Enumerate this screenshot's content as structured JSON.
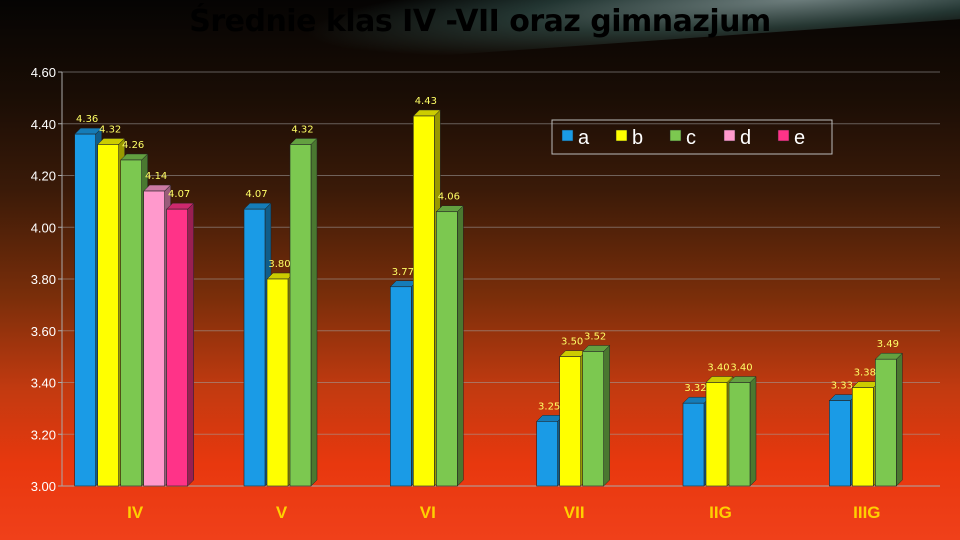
{
  "chart_data": {
    "type": "bar",
    "title": "Średnie klas IV -VII oraz gimnazjum",
    "categories": [
      "IV",
      "V",
      "VI",
      "VII",
      "IIG",
      "IIIG"
    ],
    "ylim": [
      3.0,
      4.6
    ],
    "yticks": [
      "3.00",
      "3.20",
      "3.40",
      "3.60",
      "3.80",
      "4.00",
      "4.20",
      "4.40",
      "4.60"
    ],
    "legend_position": "top-right",
    "grid": true,
    "series": [
      {
        "name": "a",
        "color": "#1a9be6",
        "values": [
          4.36,
          4.07,
          3.77,
          3.25,
          3.32,
          3.33
        ],
        "labels": [
          "4.36",
          "4.07",
          "3.77",
          "3.25",
          "3.32",
          "3.33"
        ]
      },
      {
        "name": "b",
        "color": "#ffff00",
        "values": [
          4.32,
          3.8,
          4.43,
          3.5,
          3.4,
          3.38
        ],
        "labels": [
          "4.32",
          "3.80",
          "4.43",
          "3.50",
          "3.40",
          "3.38"
        ]
      },
      {
        "name": "c",
        "color": "#7cc850",
        "values": [
          4.26,
          4.32,
          4.06,
          3.52,
          3.4,
          3.49
        ],
        "labels": [
          "4.26",
          "4.32",
          "4.06",
          "3.52",
          "3.40",
          "3.49"
        ]
      },
      {
        "name": "d",
        "color": "#ff99cc",
        "values": [
          4.14,
          null,
          null,
          null,
          null,
          null
        ],
        "labels": [
          "4.14",
          "",
          "",
          "",
          "",
          ""
        ]
      },
      {
        "name": "e",
        "color": "#ff3388",
        "values": [
          4.07,
          null,
          null,
          null,
          null,
          null
        ],
        "labels": [
          "4.07",
          "",
          "",
          "",
          "",
          ""
        ]
      }
    ]
  }
}
